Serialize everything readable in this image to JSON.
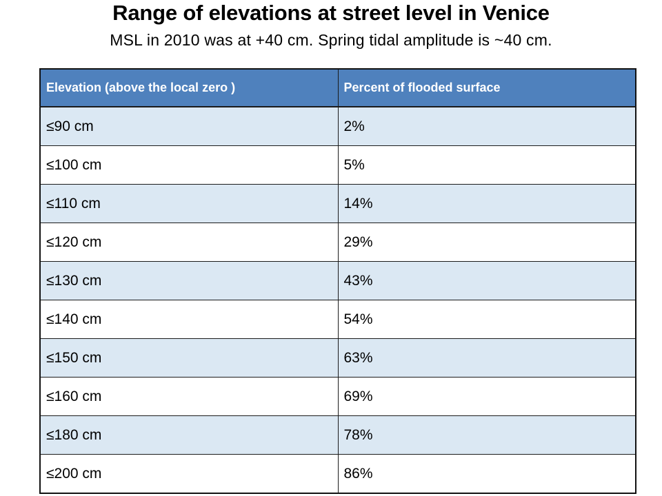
{
  "slide": {
    "title": "Range of elevations at street level in Venice",
    "subtitle": "MSL in 2010 was at +40 cm. Spring tidal amplitude is ~40 cm."
  },
  "table": {
    "headers": [
      "Elevation (above the local zero )",
      "Percent of flooded surface"
    ],
    "rows": [
      [
        "≤90 cm",
        "2%"
      ],
      [
        "≤100 cm",
        "5%"
      ],
      [
        "≤110 cm",
        "14%"
      ],
      [
        "≤120 cm",
        "29%"
      ],
      [
        "≤130 cm",
        "43%"
      ],
      [
        "≤140 cm",
        "54%"
      ],
      [
        "≤150 cm",
        "63%"
      ],
      [
        "≤160 cm",
        "69%"
      ],
      [
        "≤180 cm",
        "78%"
      ],
      [
        "≤200 cm",
        "86%"
      ]
    ]
  },
  "colors": {
    "header_bg": "#4f81bd",
    "header_text": "#ffffff",
    "row_band": "#dbe8f3",
    "row_plain": "#ffffff",
    "border": "#1a1a1a"
  }
}
